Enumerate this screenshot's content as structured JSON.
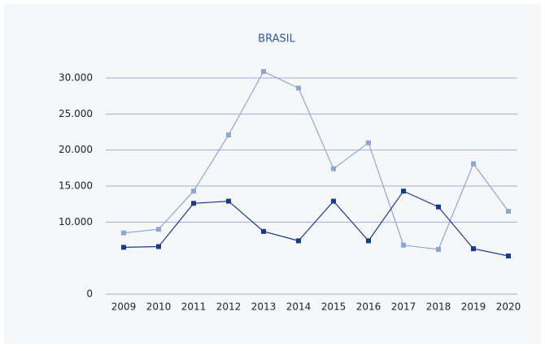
{
  "chart_data": {
    "type": "line",
    "title": "BRASIL",
    "categories": [
      "2009",
      "2010",
      "2011",
      "2012",
      "2013",
      "2014",
      "2015",
      "2016",
      "2017",
      "2018",
      "2019",
      "2020"
    ],
    "series": [
      {
        "color": "#8fa6d4",
        "values": [
          8500,
          9000,
          14300,
          22100,
          30900,
          28600,
          17400,
          21000,
          6800,
          6200,
          18100,
          11500
        ]
      },
      {
        "color": "#1a3a8c",
        "values": [
          6500,
          6600,
          12600,
          12900,
          8700,
          7400,
          12900,
          7400,
          14300,
          12100,
          6300,
          5300
        ]
      }
    ],
    "ylim": [
      0,
      30000
    ],
    "yticks": [
      0,
      {
        "value": 10000,
        "label": "10.000"
      },
      {
        "value": 15000,
        "label": "15.000"
      },
      {
        "value": 20000,
        "label": "20.000"
      },
      {
        "value": 25000,
        "label": "25.000"
      },
      {
        "value": 30000,
        "label": "30.000"
      }
    ],
    "grid": true
  }
}
